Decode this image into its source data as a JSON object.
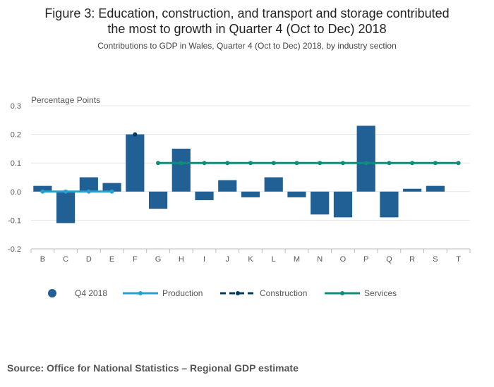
{
  "header": {
    "title_line1": "Figure 3: Education, construction, and transport and storage contributed",
    "title_line2": "the most to growth in Quarter 4 (Oct to Dec) 2018",
    "subtitle": "Contributions to GDP in Wales, Quarter 4 (Oct to Dec) 2018, by industry section"
  },
  "chart_data": {
    "type": "bar",
    "title": "Figure 3: Education, construction, and transport and storage contributed the most to growth in Quarter 4 (Oct to Dec) 2018",
    "subtitle": "Contributions to GDP in Wales, Quarter 4 (Oct to Dec) 2018, by industry section",
    "xlabel": "",
    "ylabel": "Percentage Points",
    "ylim": [
      -0.2,
      0.3
    ],
    "yticks": [
      "-0.2",
      "-0.1",
      "0.0",
      "0.1",
      "0.2",
      "0.3"
    ],
    "ytick_values": [
      -0.2,
      -0.1,
      0.0,
      0.1,
      0.2,
      0.3
    ],
    "categories": [
      "B",
      "C",
      "D",
      "E",
      "F",
      "G",
      "H",
      "I",
      "J",
      "K",
      "L",
      "M",
      "N",
      "O",
      "P",
      "Q",
      "R",
      "S",
      "T"
    ],
    "series": [
      {
        "name": "Q4 2018",
        "kind": "bar",
        "color": "#206095",
        "values": [
          0.02,
          -0.11,
          0.05,
          0.03,
          0.2,
          -0.06,
          0.15,
          -0.03,
          0.04,
          -0.02,
          0.05,
          -0.02,
          -0.08,
          -0.09,
          0.23,
          -0.09,
          0.01,
          0.02,
          null
        ]
      },
      {
        "name": "Production",
        "kind": "line",
        "color": "#27a0cc",
        "dash": "",
        "values": [
          0,
          0,
          0,
          0,
          null,
          null,
          null,
          null,
          null,
          null,
          null,
          null,
          null,
          null,
          null,
          null,
          null,
          null,
          null
        ]
      },
      {
        "name": "Construction",
        "kind": "point",
        "color": "#003c57",
        "dash": "8,5",
        "values": [
          null,
          null,
          null,
          null,
          0.2,
          null,
          null,
          null,
          null,
          null,
          null,
          null,
          null,
          null,
          null,
          null,
          null,
          null,
          null
        ]
      },
      {
        "name": "Services",
        "kind": "line",
        "color": "#118c7b",
        "dash": "",
        "values": [
          null,
          null,
          null,
          null,
          null,
          0.1,
          0.1,
          0.1,
          0.1,
          0.1,
          0.1,
          0.1,
          0.1,
          0.1,
          0.1,
          0.1,
          0.1,
          0.1,
          0.1
        ]
      }
    ],
    "legend_position": "bottom-left"
  },
  "footer": {
    "source": "Source: Office for National Statistics – Regional GDP estimate"
  }
}
